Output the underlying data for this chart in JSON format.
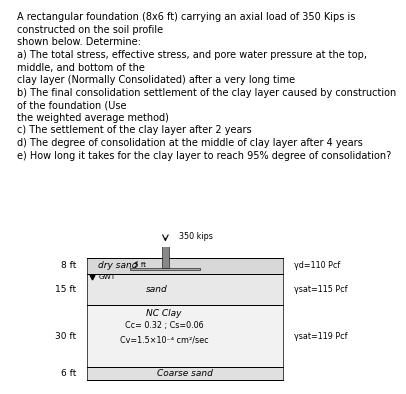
{
  "title_lines": [
    "A rectangular foundation (8x6 ft) carrying an axial load of 350 Kips is",
    "constructed on the soil profile",
    "shown below. Determine:",
    "a) The total stress, effective stress, and pore water pressure at the top,",
    "middle, and bottom of the",
    "clay layer (Normally Consolidated) after a very long time",
    "b) The final consolidation settlement of the clay layer caused by construction",
    "of the foundation (Use",
    "the weighted average method)",
    "c) The settlement of the clay layer after 2 years",
    "d) The degree of consolidation at the middle of clay layer after 4 years",
    "e) How long it takes for the clay layer to reach 95% degree of consolidation?"
  ],
  "load_label": "350 kips",
  "gwt_label": "GWT",
  "depth_labels": [
    "8 ft",
    "15 ft",
    "30 ft",
    "6 ft"
  ],
  "layer_labels": [
    "dry sand",
    "sand",
    "NC Clay",
    "Coarse sand"
  ],
  "gamma_labels": [
    "γd=110 Pcf",
    "γsat=115 Pcf",
    "γsat=119 Pcf",
    null
  ],
  "nc_clay_sub1": "Cc= 0.32 ; Cs=0.06",
  "nc_clay_sub2": "Cv=1.5×10⁻⁴ cm²/sec",
  "foundation_label": "5 ft",
  "layer_boundaries_ft": [
    0,
    8,
    23,
    53,
    59
  ],
  "layer_fills": [
    "#d8d8d8",
    "#e8e8e8",
    "#f2f2f2",
    "#e0e0e0"
  ],
  "bg_color": "#ffffff",
  "text_color": "#000000",
  "font_size_title": 7.0,
  "font_size_diagram": 6.5,
  "font_size_small": 5.8
}
